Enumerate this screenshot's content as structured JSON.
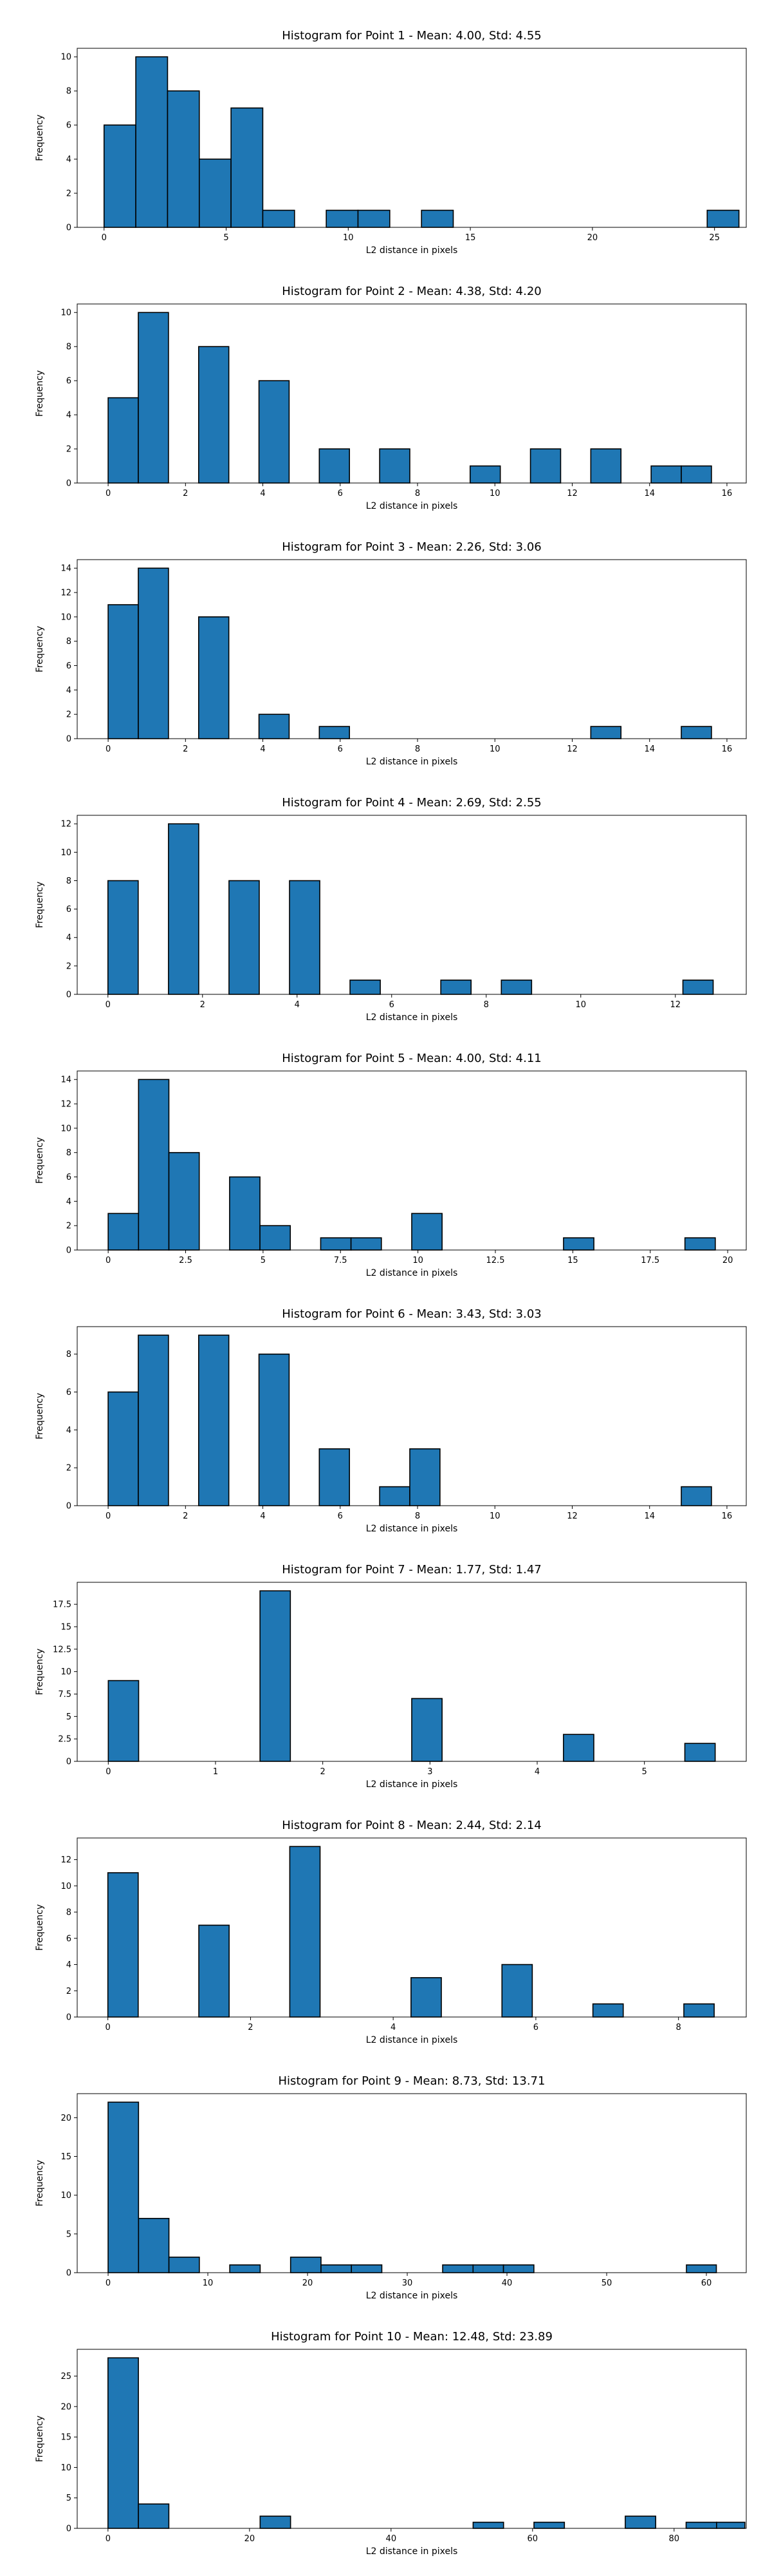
{
  "chart_data": [
    {
      "type": "bar",
      "title": "Histogram for Point 1 - Mean: 4.00, Std: 4.55",
      "xlabel": "L2 distance in pixels",
      "ylabel": "Frequency",
      "xlim": [
        -1.1,
        26.3
      ],
      "ylim": [
        0,
        10.5
      ],
      "xticks": [
        0,
        5,
        10,
        15,
        20,
        25
      ],
      "yticks": [
        0,
        2,
        4,
        6,
        8,
        10
      ],
      "bins": [
        {
          "x0": 0.0,
          "x1": 1.3,
          "count": 6
        },
        {
          "x0": 1.3,
          "x1": 2.6,
          "count": 10
        },
        {
          "x0": 2.6,
          "x1": 3.9,
          "count": 8
        },
        {
          "x0": 3.9,
          "x1": 5.2,
          "count": 4
        },
        {
          "x0": 5.2,
          "x1": 6.5,
          "count": 7
        },
        {
          "x0": 6.5,
          "x1": 7.8,
          "count": 1
        },
        {
          "x0": 9.1,
          "x1": 10.4,
          "count": 1
        },
        {
          "x0": 10.4,
          "x1": 11.7,
          "count": 1
        },
        {
          "x0": 13.0,
          "x1": 14.3,
          "count": 1
        },
        {
          "x0": 24.7,
          "x1": 26.0,
          "count": 1
        }
      ]
    },
    {
      "type": "bar",
      "title": "Histogram for Point 2 - Mean: 4.38, Std: 4.20",
      "xlabel": "L2 distance in pixels",
      "ylabel": "Frequency",
      "xlim": [
        -0.8,
        16.5
      ],
      "ylim": [
        0,
        10.5
      ],
      "xticks": [
        0,
        2,
        4,
        6,
        8,
        10,
        12,
        14,
        16
      ],
      "yticks": [
        0,
        2,
        4,
        6,
        8,
        10
      ],
      "bins": [
        {
          "x0": 0.0,
          "x1": 0.78,
          "count": 5
        },
        {
          "x0": 0.78,
          "x1": 1.56,
          "count": 10
        },
        {
          "x0": 2.34,
          "x1": 3.12,
          "count": 8
        },
        {
          "x0": 3.9,
          "x1": 4.68,
          "count": 6
        },
        {
          "x0": 5.46,
          "x1": 6.24,
          "count": 2
        },
        {
          "x0": 7.02,
          "x1": 7.8,
          "count": 2
        },
        {
          "x0": 9.36,
          "x1": 10.14,
          "count": 1
        },
        {
          "x0": 10.92,
          "x1": 11.7,
          "count": 2
        },
        {
          "x0": 12.48,
          "x1": 13.26,
          "count": 2
        },
        {
          "x0": 14.04,
          "x1": 14.82,
          "count": 1
        },
        {
          "x0": 14.82,
          "x1": 15.6,
          "count": 1
        }
      ]
    },
    {
      "type": "bar",
      "title": "Histogram for Point 3 - Mean: 2.26, Std: 3.06",
      "xlabel": "L2 distance in pixels",
      "ylabel": "Frequency",
      "xlim": [
        -0.8,
        16.5
      ],
      "ylim": [
        0,
        14.7
      ],
      "xticks": [
        0,
        2,
        4,
        6,
        8,
        10,
        12,
        14,
        16
      ],
      "yticks": [
        0,
        2,
        4,
        6,
        8,
        10,
        12,
        14
      ],
      "bins": [
        {
          "x0": 0.0,
          "x1": 0.78,
          "count": 11
        },
        {
          "x0": 0.78,
          "x1": 1.56,
          "count": 14
        },
        {
          "x0": 2.34,
          "x1": 3.12,
          "count": 10
        },
        {
          "x0": 3.9,
          "x1": 4.68,
          "count": 2
        },
        {
          "x0": 5.46,
          "x1": 6.24,
          "count": 1
        },
        {
          "x0": 12.48,
          "x1": 13.26,
          "count": 1
        },
        {
          "x0": 14.82,
          "x1": 15.6,
          "count": 1
        }
      ]
    },
    {
      "type": "bar",
      "title": "Histogram for Point 4 - Mean: 2.69, Std: 2.55",
      "xlabel": "L2 distance in pixels",
      "ylabel": "Frequency",
      "xlim": [
        -0.65,
        13.5
      ],
      "ylim": [
        0,
        12.6
      ],
      "xticks": [
        0,
        2,
        4,
        6,
        8,
        10,
        12
      ],
      "yticks": [
        0,
        2,
        4,
        6,
        8,
        10,
        12
      ],
      "bins": [
        {
          "x0": 0.0,
          "x1": 0.64,
          "count": 8
        },
        {
          "x0": 1.28,
          "x1": 1.92,
          "count": 12
        },
        {
          "x0": 2.56,
          "x1": 3.2,
          "count": 8
        },
        {
          "x0": 3.84,
          "x1": 4.48,
          "count": 8
        },
        {
          "x0": 5.12,
          "x1": 5.76,
          "count": 1
        },
        {
          "x0": 7.04,
          "x1": 7.68,
          "count": 1
        },
        {
          "x0": 8.32,
          "x1": 8.96,
          "count": 1
        },
        {
          "x0": 12.16,
          "x1": 12.8,
          "count": 1
        }
      ]
    },
    {
      "type": "bar",
      "title": "Histogram for Point 5 - Mean: 4.00, Std: 4.11",
      "xlabel": "L2 distance in pixels",
      "ylabel": "Frequency",
      "xlim": [
        -1.0,
        20.6
      ],
      "ylim": [
        0,
        14.7
      ],
      "xticks": [
        0.0,
        2.5,
        5.0,
        7.5,
        10.0,
        12.5,
        15.0,
        17.5,
        20.0
      ],
      "yticks": [
        0,
        2,
        4,
        6,
        8,
        10,
        12,
        14
      ],
      "bins": [
        {
          "x0": 0.0,
          "x1": 0.98,
          "count": 3
        },
        {
          "x0": 0.98,
          "x1": 1.96,
          "count": 14
        },
        {
          "x0": 1.96,
          "x1": 2.94,
          "count": 8
        },
        {
          "x0": 3.92,
          "x1": 4.9,
          "count": 6
        },
        {
          "x0": 4.9,
          "x1": 5.88,
          "count": 2
        },
        {
          "x0": 6.86,
          "x1": 7.84,
          "count": 1
        },
        {
          "x0": 7.84,
          "x1": 8.82,
          "count": 1
        },
        {
          "x0": 9.8,
          "x1": 10.78,
          "count": 3
        },
        {
          "x0": 14.7,
          "x1": 15.68,
          "count": 1
        },
        {
          "x0": 18.62,
          "x1": 19.6,
          "count": 1
        }
      ]
    },
    {
      "type": "bar",
      "title": "Histogram for Point 6 - Mean: 3.43, Std: 3.03",
      "xlabel": "L2 distance in pixels",
      "ylabel": "Frequency",
      "xlim": [
        -0.8,
        16.5
      ],
      "ylim": [
        0,
        9.45
      ],
      "xticks": [
        0,
        2,
        4,
        6,
        8,
        10,
        12,
        14,
        16
      ],
      "yticks": [
        0,
        2,
        4,
        6,
        8
      ],
      "bins": [
        {
          "x0": 0.0,
          "x1": 0.78,
          "count": 6
        },
        {
          "x0": 0.78,
          "x1": 1.56,
          "count": 9
        },
        {
          "x0": 2.34,
          "x1": 3.12,
          "count": 9
        },
        {
          "x0": 3.9,
          "x1": 4.68,
          "count": 8
        },
        {
          "x0": 5.46,
          "x1": 6.24,
          "count": 3
        },
        {
          "x0": 7.02,
          "x1": 7.8,
          "count": 1
        },
        {
          "x0": 7.8,
          "x1": 8.58,
          "count": 3
        },
        {
          "x0": 14.82,
          "x1": 15.6,
          "count": 1
        }
      ]
    },
    {
      "type": "bar",
      "title": "Histogram for Point 7 - Mean: 1.77, Std: 1.47",
      "xlabel": "L2 distance in pixels",
      "ylabel": "Frequency",
      "xlim": [
        -0.29,
        5.95
      ],
      "ylim": [
        0,
        19.95
      ],
      "xticks": [
        0,
        1,
        2,
        3,
        4,
        5
      ],
      "yticks": [
        0.0,
        2.5,
        5.0,
        7.5,
        10.0,
        12.5,
        15.0,
        17.5
      ],
      "bins": [
        {
          "x0": 0.0,
          "x1": 0.283,
          "count": 9
        },
        {
          "x0": 1.415,
          "x1": 1.698,
          "count": 19
        },
        {
          "x0": 2.83,
          "x1": 3.113,
          "count": 7
        },
        {
          "x0": 4.245,
          "x1": 4.528,
          "count": 3
        },
        {
          "x0": 5.377,
          "x1": 5.66,
          "count": 2
        }
      ]
    },
    {
      "type": "bar",
      "title": "Histogram for Point 8 - Mean: 2.44, Std: 2.14",
      "xlabel": "L2 distance in pixels",
      "ylabel": "Frequency",
      "xlim": [
        -0.43,
        8.95
      ],
      "ylim": [
        0,
        13.65
      ],
      "xticks": [
        0,
        2,
        4,
        6,
        8
      ],
      "yticks": [
        0,
        2,
        4,
        6,
        8,
        10,
        12
      ],
      "bins": [
        {
          "x0": 0.0,
          "x1": 0.425,
          "count": 11
        },
        {
          "x0": 1.275,
          "x1": 1.7,
          "count": 7
        },
        {
          "x0": 2.55,
          "x1": 2.975,
          "count": 13
        },
        {
          "x0": 4.25,
          "x1": 4.675,
          "count": 3
        },
        {
          "x0": 5.525,
          "x1": 5.95,
          "count": 4
        },
        {
          "x0": 6.8,
          "x1": 7.225,
          "count": 1
        },
        {
          "x0": 8.075,
          "x1": 8.5,
          "count": 1
        }
      ]
    },
    {
      "type": "bar",
      "title": "Histogram for Point 9 - Mean: 8.73, Std: 13.71",
      "xlabel": "L2 distance in pixels",
      "ylabel": "Frequency",
      "xlim": [
        -3.1,
        64.0
      ],
      "ylim": [
        0,
        23.1
      ],
      "xticks": [
        0,
        10,
        20,
        30,
        40,
        50,
        60
      ],
      "yticks": [
        0,
        5,
        10,
        15,
        20
      ],
      "bins": [
        {
          "x0": 0.0,
          "x1": 3.05,
          "count": 22
        },
        {
          "x0": 3.05,
          "x1": 6.1,
          "count": 7
        },
        {
          "x0": 6.1,
          "x1": 9.15,
          "count": 2
        },
        {
          "x0": 12.2,
          "x1": 15.25,
          "count": 1
        },
        {
          "x0": 18.3,
          "x1": 21.35,
          "count": 2
        },
        {
          "x0": 21.35,
          "x1": 24.4,
          "count": 1
        },
        {
          "x0": 24.4,
          "x1": 27.45,
          "count": 1
        },
        {
          "x0": 33.55,
          "x1": 36.6,
          "count": 1
        },
        {
          "x0": 36.6,
          "x1": 39.65,
          "count": 1
        },
        {
          "x0": 39.65,
          "x1": 42.7,
          "count": 1
        },
        {
          "x0": 58.0,
          "x1": 61.0,
          "count": 1
        }
      ]
    },
    {
      "type": "bar",
      "title": "Histogram for Point 10 - Mean: 12.48, Std: 23.89",
      "xlabel": "L2 distance in pixels",
      "ylabel": "Frequency",
      "xlim": [
        -4.35,
        90.2
      ],
      "ylim": [
        0,
        29.4
      ],
      "xticks": [
        0,
        20,
        40,
        60,
        80
      ],
      "yticks": [
        0,
        5,
        10,
        15,
        20,
        25
      ],
      "bins": [
        {
          "x0": 0.0,
          "x1": 4.3,
          "count": 28
        },
        {
          "x0": 4.3,
          "x1": 8.6,
          "count": 4
        },
        {
          "x0": 21.5,
          "x1": 25.8,
          "count": 2
        },
        {
          "x0": 51.6,
          "x1": 55.9,
          "count": 1
        },
        {
          "x0": 60.2,
          "x1": 64.5,
          "count": 1
        },
        {
          "x0": 73.1,
          "x1": 77.4,
          "count": 2
        },
        {
          "x0": 81.7,
          "x1": 86.0,
          "count": 1
        },
        {
          "x0": 86.0,
          "x1": 90.0,
          "count": 1
        }
      ]
    }
  ]
}
